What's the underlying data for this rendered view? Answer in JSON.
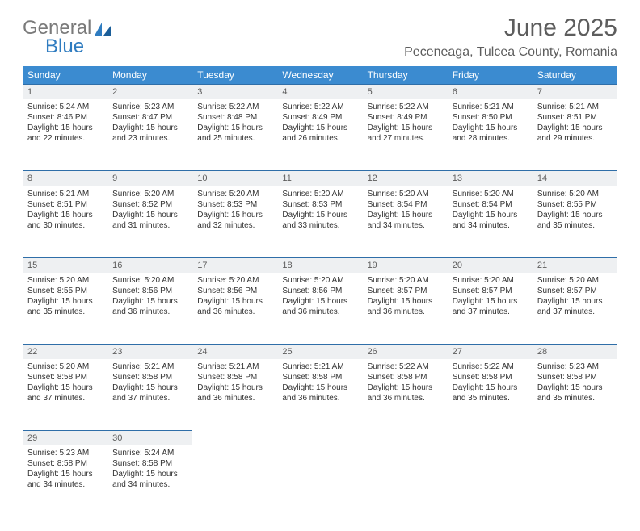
{
  "logo": {
    "word1": "General",
    "word2": "Blue"
  },
  "title": "June 2025",
  "location": "Peceneaga, Tulcea County, Romania",
  "colors": {
    "header_bg": "#3b8bd0",
    "header_fg": "#ffffff",
    "daynum_bg": "#eef0f2",
    "rule": "#2f6ea8",
    "text": "#333333",
    "logo_gray": "#7a7a7a",
    "logo_blue": "#2f7cc0"
  },
  "weekdays": [
    "Sunday",
    "Monday",
    "Tuesday",
    "Wednesday",
    "Thursday",
    "Friday",
    "Saturday"
  ],
  "weeks": [
    [
      {
        "n": "1",
        "sr": "Sunrise: 5:24 AM",
        "ss": "Sunset: 8:46 PM",
        "d1": "Daylight: 15 hours",
        "d2": "and 22 minutes."
      },
      {
        "n": "2",
        "sr": "Sunrise: 5:23 AM",
        "ss": "Sunset: 8:47 PM",
        "d1": "Daylight: 15 hours",
        "d2": "and 23 minutes."
      },
      {
        "n": "3",
        "sr": "Sunrise: 5:22 AM",
        "ss": "Sunset: 8:48 PM",
        "d1": "Daylight: 15 hours",
        "d2": "and 25 minutes."
      },
      {
        "n": "4",
        "sr": "Sunrise: 5:22 AM",
        "ss": "Sunset: 8:49 PM",
        "d1": "Daylight: 15 hours",
        "d2": "and 26 minutes."
      },
      {
        "n": "5",
        "sr": "Sunrise: 5:22 AM",
        "ss": "Sunset: 8:49 PM",
        "d1": "Daylight: 15 hours",
        "d2": "and 27 minutes."
      },
      {
        "n": "6",
        "sr": "Sunrise: 5:21 AM",
        "ss": "Sunset: 8:50 PM",
        "d1": "Daylight: 15 hours",
        "d2": "and 28 minutes."
      },
      {
        "n": "7",
        "sr": "Sunrise: 5:21 AM",
        "ss": "Sunset: 8:51 PM",
        "d1": "Daylight: 15 hours",
        "d2": "and 29 minutes."
      }
    ],
    [
      {
        "n": "8",
        "sr": "Sunrise: 5:21 AM",
        "ss": "Sunset: 8:51 PM",
        "d1": "Daylight: 15 hours",
        "d2": "and 30 minutes."
      },
      {
        "n": "9",
        "sr": "Sunrise: 5:20 AM",
        "ss": "Sunset: 8:52 PM",
        "d1": "Daylight: 15 hours",
        "d2": "and 31 minutes."
      },
      {
        "n": "10",
        "sr": "Sunrise: 5:20 AM",
        "ss": "Sunset: 8:53 PM",
        "d1": "Daylight: 15 hours",
        "d2": "and 32 minutes."
      },
      {
        "n": "11",
        "sr": "Sunrise: 5:20 AM",
        "ss": "Sunset: 8:53 PM",
        "d1": "Daylight: 15 hours",
        "d2": "and 33 minutes."
      },
      {
        "n": "12",
        "sr": "Sunrise: 5:20 AM",
        "ss": "Sunset: 8:54 PM",
        "d1": "Daylight: 15 hours",
        "d2": "and 34 minutes."
      },
      {
        "n": "13",
        "sr": "Sunrise: 5:20 AM",
        "ss": "Sunset: 8:54 PM",
        "d1": "Daylight: 15 hours",
        "d2": "and 34 minutes."
      },
      {
        "n": "14",
        "sr": "Sunrise: 5:20 AM",
        "ss": "Sunset: 8:55 PM",
        "d1": "Daylight: 15 hours",
        "d2": "and 35 minutes."
      }
    ],
    [
      {
        "n": "15",
        "sr": "Sunrise: 5:20 AM",
        "ss": "Sunset: 8:55 PM",
        "d1": "Daylight: 15 hours",
        "d2": "and 35 minutes."
      },
      {
        "n": "16",
        "sr": "Sunrise: 5:20 AM",
        "ss": "Sunset: 8:56 PM",
        "d1": "Daylight: 15 hours",
        "d2": "and 36 minutes."
      },
      {
        "n": "17",
        "sr": "Sunrise: 5:20 AM",
        "ss": "Sunset: 8:56 PM",
        "d1": "Daylight: 15 hours",
        "d2": "and 36 minutes."
      },
      {
        "n": "18",
        "sr": "Sunrise: 5:20 AM",
        "ss": "Sunset: 8:56 PM",
        "d1": "Daylight: 15 hours",
        "d2": "and 36 minutes."
      },
      {
        "n": "19",
        "sr": "Sunrise: 5:20 AM",
        "ss": "Sunset: 8:57 PM",
        "d1": "Daylight: 15 hours",
        "d2": "and 36 minutes."
      },
      {
        "n": "20",
        "sr": "Sunrise: 5:20 AM",
        "ss": "Sunset: 8:57 PM",
        "d1": "Daylight: 15 hours",
        "d2": "and 37 minutes."
      },
      {
        "n": "21",
        "sr": "Sunrise: 5:20 AM",
        "ss": "Sunset: 8:57 PM",
        "d1": "Daylight: 15 hours",
        "d2": "and 37 minutes."
      }
    ],
    [
      {
        "n": "22",
        "sr": "Sunrise: 5:20 AM",
        "ss": "Sunset: 8:58 PM",
        "d1": "Daylight: 15 hours",
        "d2": "and 37 minutes."
      },
      {
        "n": "23",
        "sr": "Sunrise: 5:21 AM",
        "ss": "Sunset: 8:58 PM",
        "d1": "Daylight: 15 hours",
        "d2": "and 37 minutes."
      },
      {
        "n": "24",
        "sr": "Sunrise: 5:21 AM",
        "ss": "Sunset: 8:58 PM",
        "d1": "Daylight: 15 hours",
        "d2": "and 36 minutes."
      },
      {
        "n": "25",
        "sr": "Sunrise: 5:21 AM",
        "ss": "Sunset: 8:58 PM",
        "d1": "Daylight: 15 hours",
        "d2": "and 36 minutes."
      },
      {
        "n": "26",
        "sr": "Sunrise: 5:22 AM",
        "ss": "Sunset: 8:58 PM",
        "d1": "Daylight: 15 hours",
        "d2": "and 36 minutes."
      },
      {
        "n": "27",
        "sr": "Sunrise: 5:22 AM",
        "ss": "Sunset: 8:58 PM",
        "d1": "Daylight: 15 hours",
        "d2": "and 35 minutes."
      },
      {
        "n": "28",
        "sr": "Sunrise: 5:23 AM",
        "ss": "Sunset: 8:58 PM",
        "d1": "Daylight: 15 hours",
        "d2": "and 35 minutes."
      }
    ],
    [
      {
        "n": "29",
        "sr": "Sunrise: 5:23 AM",
        "ss": "Sunset: 8:58 PM",
        "d1": "Daylight: 15 hours",
        "d2": "and 34 minutes."
      },
      {
        "n": "30",
        "sr": "Sunrise: 5:24 AM",
        "ss": "Sunset: 8:58 PM",
        "d1": "Daylight: 15 hours",
        "d2": "and 34 minutes."
      },
      null,
      null,
      null,
      null,
      null
    ]
  ]
}
